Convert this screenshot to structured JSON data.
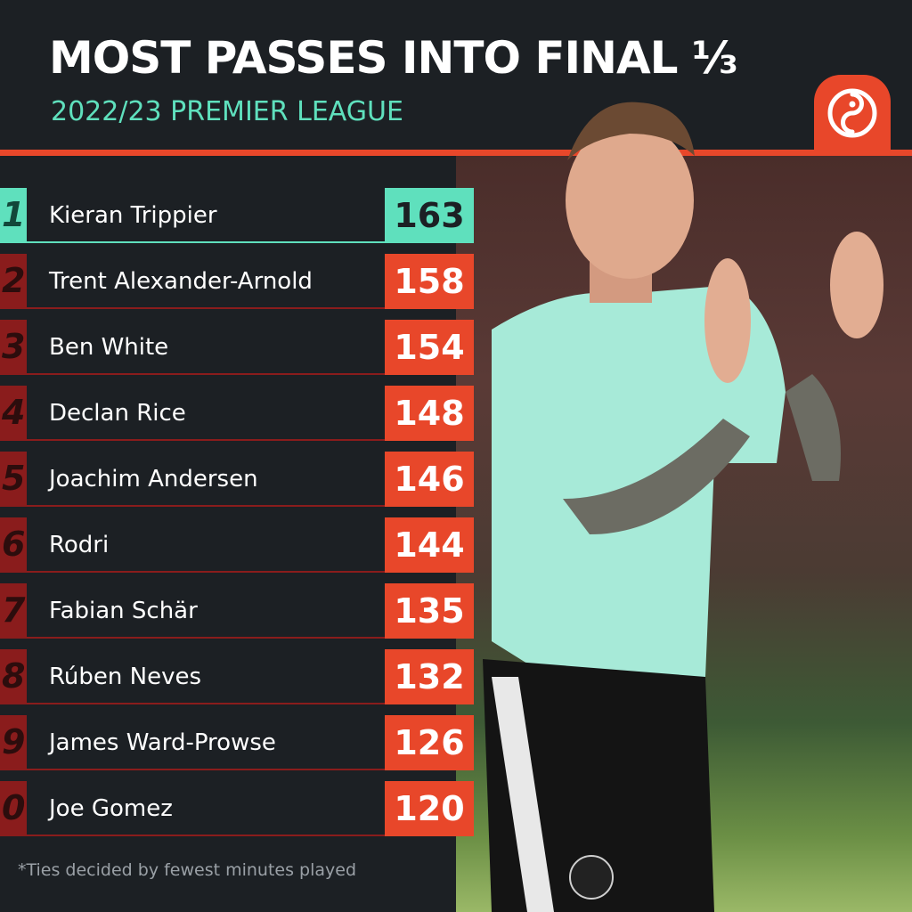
{
  "header": {
    "title": "MOST PASSES INTO FINAL ⅓",
    "subtitle": "2022/23 PREMIER LEAGUE",
    "logo_icon": "opta-swirl-icon"
  },
  "colors": {
    "accent": "#e8472a",
    "highlight": "#5fe0bd",
    "background": "#1c2024",
    "rank_red": "#8a1c1c"
  },
  "leaderboard": {
    "rows": [
      {
        "rank": "1",
        "name": "Kieran Trippier",
        "value": "163"
      },
      {
        "rank": "2",
        "name": "Trent Alexander-Arnold",
        "value": "158"
      },
      {
        "rank": "3",
        "name": "Ben White",
        "value": "154"
      },
      {
        "rank": "4",
        "name": "Declan Rice",
        "value": "148"
      },
      {
        "rank": "5",
        "name": "Joachim Andersen",
        "value": "146"
      },
      {
        "rank": "6",
        "name": "Rodri",
        "value": "144"
      },
      {
        "rank": "7",
        "name": "Fabian Schär",
        "value": "135"
      },
      {
        "rank": "8",
        "name": "Rúben Neves",
        "value": "132"
      },
      {
        "rank": "9",
        "name": "James Ward-Prowse",
        "value": "126"
      },
      {
        "rank": "0",
        "name": "Joe Gomez",
        "value": "120"
      }
    ]
  },
  "footnote": "*Ties decided by fewest minutes played"
}
